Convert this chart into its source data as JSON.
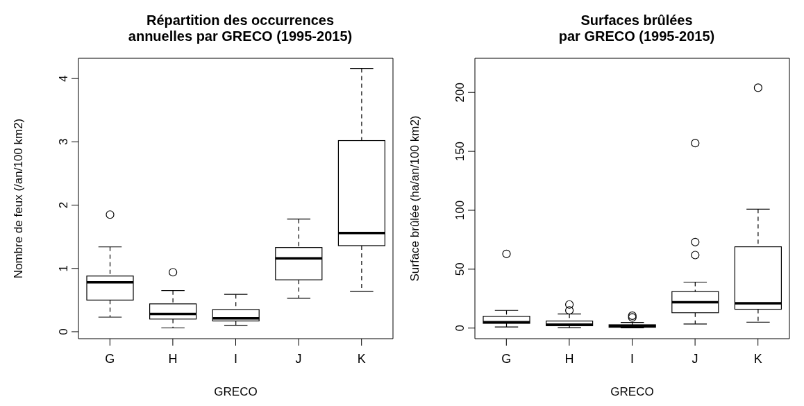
{
  "chart_data": [
    {
      "type": "box",
      "title": "Répartition des occurrences\nannuelles par GRECO (1995-2015)",
      "xlabel": "GRECO",
      "ylabel": "Nombre de feux (/an/100 km2)",
      "categories": [
        "G",
        "H",
        "I",
        "J",
        "K"
      ],
      "boxes": [
        {
          "low": 0.23,
          "q1": 0.5,
          "median": 0.78,
          "q3": 0.88,
          "high": 1.34,
          "outliers": [
            1.85
          ]
        },
        {
          "low": 0.06,
          "q1": 0.2,
          "median": 0.28,
          "q3": 0.44,
          "high": 0.65,
          "outliers": [
            0.94
          ]
        },
        {
          "low": 0.1,
          "q1": 0.17,
          "median": 0.21,
          "q3": 0.35,
          "high": 0.59
        },
        {
          "low": 0.53,
          "q1": 0.82,
          "median": 1.16,
          "q3": 1.33,
          "high": 1.78
        },
        {
          "low": 0.64,
          "q1": 1.36,
          "median": 1.56,
          "q3": 3.02,
          "high": 4.16
        }
      ],
      "ylim": [
        -0.11,
        4.32
      ],
      "yticks": [
        0,
        1,
        2,
        3,
        4
      ],
      "grid": false
    },
    {
      "type": "box",
      "title": "Surfaces brûlées\npar GRECO (1995-2015)",
      "xlabel": "GRECO",
      "ylabel": "Surface brûlée (ha/an/100 km2)",
      "categories": [
        "G",
        "H",
        "I",
        "J",
        "K"
      ],
      "boxes": [
        {
          "low": 1,
          "q1": 4,
          "median": 5,
          "q3": 10,
          "high": 15,
          "outliers": [
            63
          ]
        },
        {
          "low": 0.4,
          "q1": 2,
          "median": 3,
          "q3": 6,
          "high": 12,
          "outliers": [
            15,
            20
          ]
        },
        {
          "low": 0.2,
          "q1": 0.7,
          "median": 1.7,
          "q3": 2.8,
          "high": 4.8,
          "outliers": [
            9,
            10.5
          ]
        },
        {
          "low": 3.5,
          "q1": 13,
          "median": 22,
          "q3": 31,
          "high": 39,
          "outliers": [
            62,
            73,
            157
          ]
        },
        {
          "low": 5,
          "q1": 16,
          "median": 21,
          "q3": 69,
          "high": 101,
          "outliers": [
            204
          ]
        }
      ],
      "ylim": [
        -9,
        229
      ],
      "yticks": [
        0,
        50,
        100,
        150,
        200
      ],
      "grid": false
    }
  ]
}
